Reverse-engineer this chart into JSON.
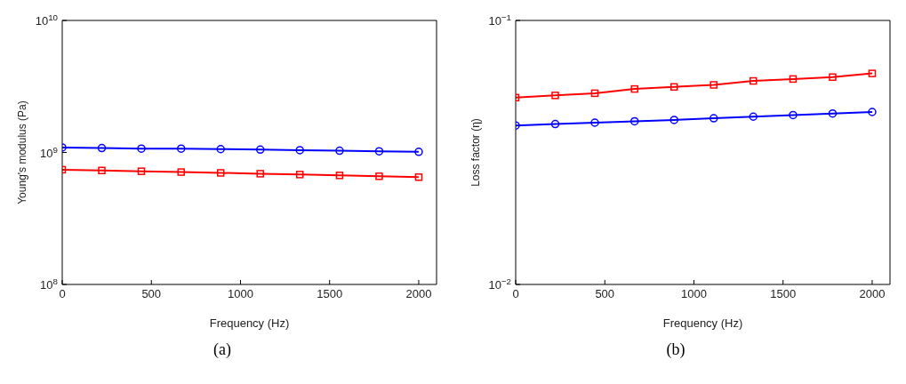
{
  "chart_data": [
    {
      "type": "line",
      "xlabel": "Frequency (Hz)",
      "ylabel": "Young's modulus (Pa)",
      "log": "y",
      "x": [
        0,
        222,
        444,
        667,
        889,
        1111,
        1333,
        1556,
        1778,
        2000
      ],
      "series": [
        {
          "color": "#0000ff",
          "marker": "circle",
          "values": [
            1090000000.0,
            1080000000.0,
            1070000000.0,
            1070000000.0,
            1060000000.0,
            1050000000.0,
            1040000000.0,
            1030000000.0,
            1020000000.0,
            1010000000.0
          ]
        },
        {
          "color": "#ff0000",
          "marker": "square",
          "values": [
            740000000.0,
            730000000.0,
            720000000.0,
            710000000.0,
            700000000.0,
            690000000.0,
            680000000.0,
            670000000.0,
            660000000.0,
            650000000.0
          ]
        }
      ],
      "xlim": [
        0,
        2100
      ],
      "xticks": [
        0,
        500,
        1000,
        1500,
        2000
      ],
      "ylim": [
        100000000.0,
        10000000000.0
      ],
      "yticks": [
        {
          "value": 100000000.0,
          "label": "10$^{8}$"
        },
        {
          "value": 1000000000.0,
          "label": "10$^{9}$"
        },
        {
          "value": 10000000000.0,
          "label": "10$^{10}$"
        }
      ],
      "annotations": [
        "(a)"
      ]
    },
    {
      "type": "line",
      "xlabel": "Frequency (Hz)",
      "ylabel": "Loss factor (η)",
      "log": "y",
      "x": [
        0,
        222,
        444,
        667,
        889,
        1111,
        1333,
        1556,
        1778,
        2000
      ],
      "series": [
        {
          "color": "#ff0000",
          "marker": "square",
          "values": [
            0.051,
            0.052,
            0.053,
            0.055,
            0.056,
            0.057,
            0.059,
            0.06,
            0.061,
            0.063
          ]
        },
        {
          "color": "#0000ff",
          "marker": "circle",
          "values": [
            0.04,
            0.0405,
            0.041,
            0.0415,
            0.042,
            0.0426,
            0.0432,
            0.0438,
            0.0444,
            0.045
          ]
        }
      ],
      "xlim": [
        0,
        2100
      ],
      "xticks": [
        0,
        500,
        1000,
        1500,
        2000
      ],
      "ylim": [
        0.01,
        0.1
      ],
      "yticks": [
        {
          "value": 0.01,
          "label": "10$^{−2}$"
        },
        {
          "value": 0.1,
          "label": "10$^{−1}$"
        }
      ],
      "annotations": [
        "(b)"
      ]
    }
  ]
}
